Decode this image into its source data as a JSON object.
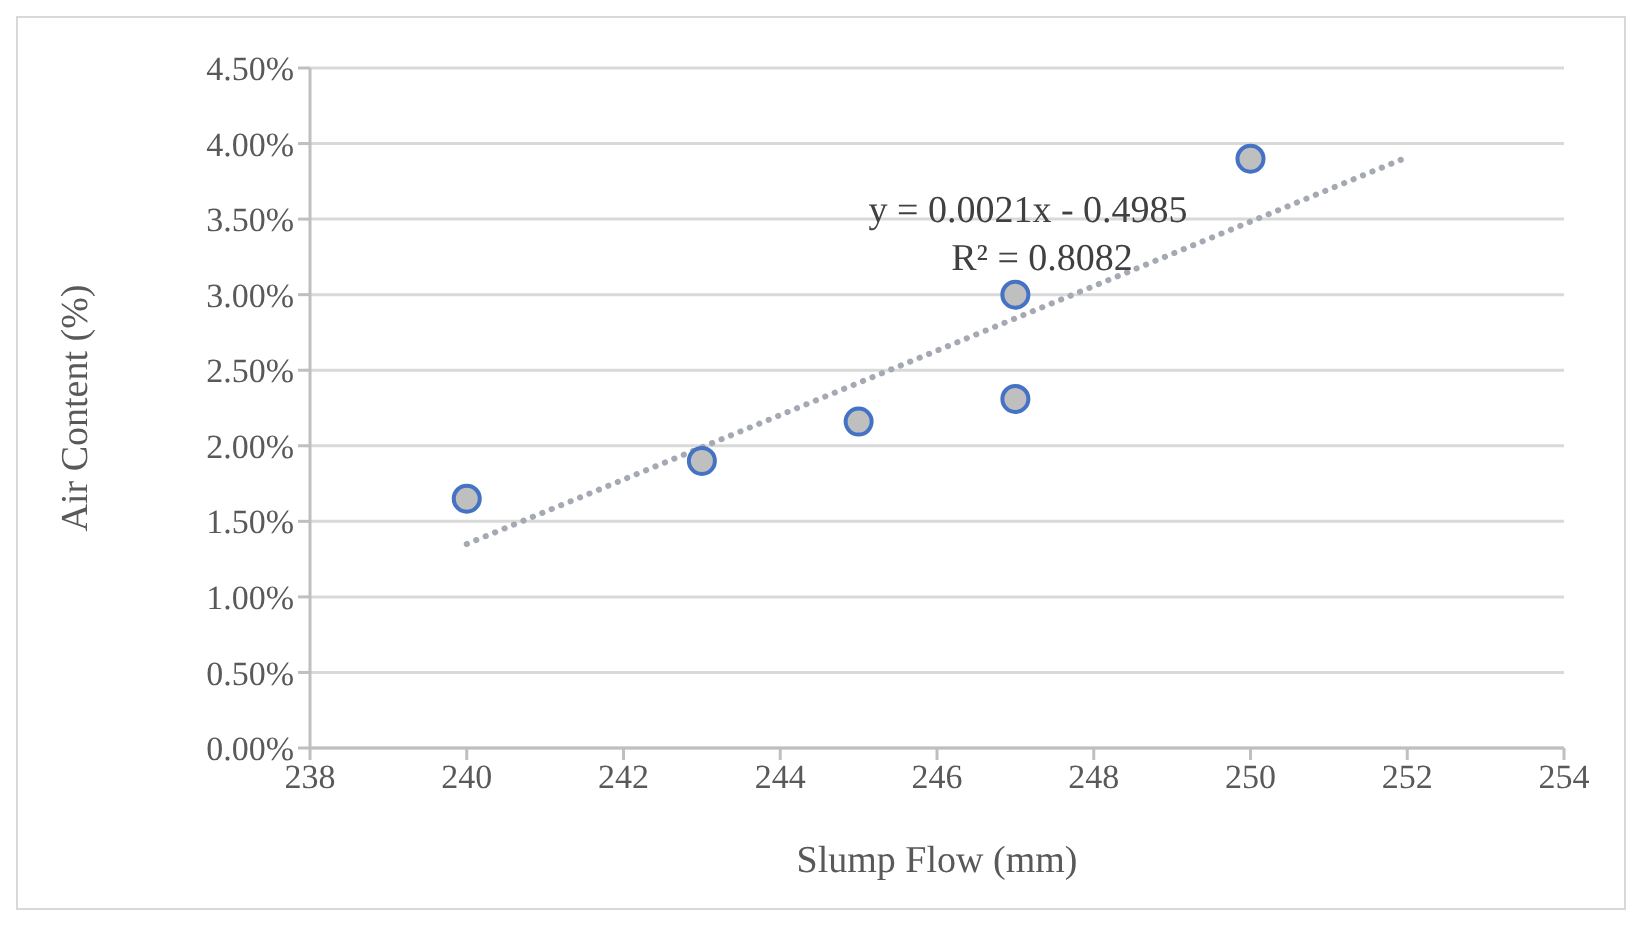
{
  "chart_data": {
    "type": "scatter",
    "xlabel": "Slump Flow (mm)",
    "ylabel": "Air Content (%)",
    "annotations": [
      "y = 0.0021x - 0.4985",
      "R² = 0.8082"
    ],
    "series": [
      {
        "x": [
          240,
          243,
          245,
          247,
          247,
          250
        ],
        "values": [
          1.65,
          1.9,
          2.16,
          2.31,
          3.0,
          3.9
        ],
        "color": "#bfbfbf"
      },
      {
        "type": "line",
        "x": [
          240,
          252
        ],
        "values": [
          1.35,
          3.91
        ],
        "color": "#a5a9b3",
        "line_style": "dotted",
        "marker": "none"
      }
    ],
    "xlim": [
      238,
      254
    ],
    "xticks": [
      238,
      240,
      242,
      244,
      246,
      248,
      250,
      252,
      254
    ],
    "ylim": [
      0,
      4.5
    ],
    "yticks": [
      {
        "value": 0,
        "label": "0.00%"
      },
      {
        "value": 0.5,
        "label": "0.50%"
      },
      {
        "value": 1,
        "label": "1.00%"
      },
      {
        "value": 1.5,
        "label": "1.50%"
      },
      {
        "value": 2,
        "label": "2.00%"
      },
      {
        "value": 2.5,
        "label": "2.50%"
      },
      {
        "value": 3,
        "label": "3.00%"
      },
      {
        "value": 3.5,
        "label": "3.50%"
      },
      {
        "value": 4,
        "label": "4.00%"
      },
      {
        "value": 4.5,
        "label": "4.50%"
      }
    ],
    "grid": "y",
    "legend": false,
    "marker": "circle"
  }
}
